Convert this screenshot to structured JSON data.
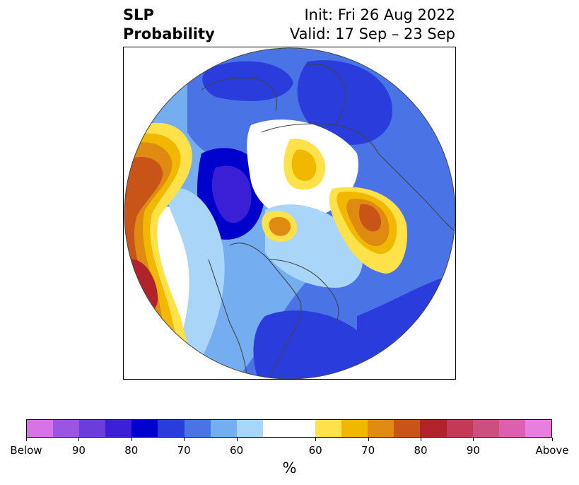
{
  "title": {
    "left_line1": "SLP",
    "left_line2": "Probability",
    "right_line1": "Init: Fri 26 Aug 2022",
    "right_line2": "Valid: 17 Sep – 23 Sep"
  },
  "colorbar": {
    "unit_label": "%",
    "ticks": [
      "Below",
      "90",
      "80",
      "70",
      "60",
      "60",
      "70",
      "80",
      "90",
      "Above"
    ],
    "colors": [
      "#d673e6",
      "#9a55e2",
      "#6a3ddc",
      "#3a1fd6",
      "#0000cc",
      "#2a3ddc",
      "#4a73e6",
      "#74aef0",
      "#a9d6f8",
      "#ffffff",
      "#ffe24a",
      "#f2b800",
      "#df8a10",
      "#c85418",
      "#b2222a",
      "#c23a55",
      "#cc4f80",
      "#dc60b0",
      "#e87ee0"
    ]
  },
  "map": {
    "projection": "north polar stereographic",
    "colors": {
      "light_blue": "#a9d6f8",
      "sky_blue": "#74aef0",
      "mid_blue": "#4a73e6",
      "royal_blue": "#2a3ddc",
      "deep_blue": "#0000cc",
      "violet_blue": "#3a1fd6",
      "yellow": "#ffe24a",
      "gold": "#f2b800",
      "orange": "#df8a10",
      "burnt_orange": "#c85418",
      "red": "#b2222a",
      "outline": "#444444"
    }
  }
}
